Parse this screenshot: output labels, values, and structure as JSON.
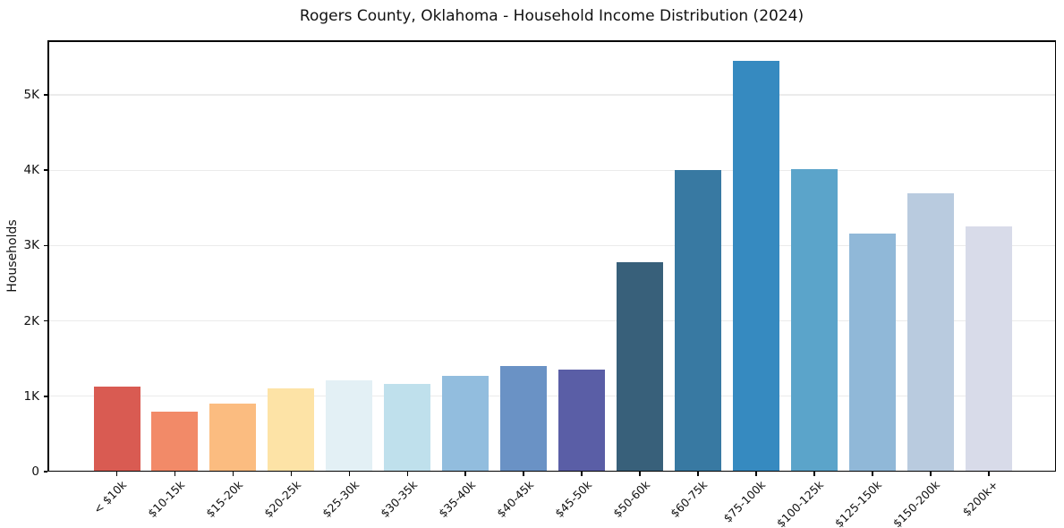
{
  "figure": {
    "title": "Rogers County, Oklahoma - Household Income Distribution (2024)",
    "ylabel": "Households"
  },
  "chart_data": {
    "type": "bar",
    "title": "Rogers County, Oklahoma - Household Income Distribution (2024)",
    "xlabel": "",
    "ylabel": "Households",
    "categories": [
      "< $10k",
      "$10-15k",
      "$15-20k",
      "$20-25k",
      "$25-30k",
      "$30-35k",
      "$35-40k",
      "$40-45k",
      "$45-50k",
      "$50-60k",
      "$60-75k",
      "$75-100k",
      "$100-125k",
      "$125-150k",
      "$150-200k",
      "$200k+"
    ],
    "values": [
      1130,
      795,
      905,
      1105,
      1210,
      1165,
      1270,
      1400,
      1355,
      2780,
      4000,
      5455,
      4015,
      3160,
      3695,
      3255
    ],
    "bar_colors": [
      "#d95b52",
      "#f28a68",
      "#fbbc80",
      "#fde3a6",
      "#e3f0f5",
      "#bfe0ec",
      "#92bdde",
      "#6a92c5",
      "#5a5ea6",
      "#38607a",
      "#3879a2",
      "#368ac0",
      "#5ba4ca",
      "#90b8d8",
      "#b9cbdf",
      "#d8dbe9"
    ],
    "ytick_labels": [
      "0",
      "1K",
      "2K",
      "3K",
      "4K",
      "5K"
    ],
    "ytick_values": [
      0,
      1000,
      2000,
      3000,
      4000,
      5000
    ],
    "ylim": [
      0,
      5725
    ],
    "grid": "horizontal-only",
    "legend": "none",
    "xtick_rotation_deg": 45
  },
  "colors": {
    "background": "#ffffff",
    "spine": "#000000",
    "gridline": "#ebebeb",
    "text": "#111111"
  }
}
